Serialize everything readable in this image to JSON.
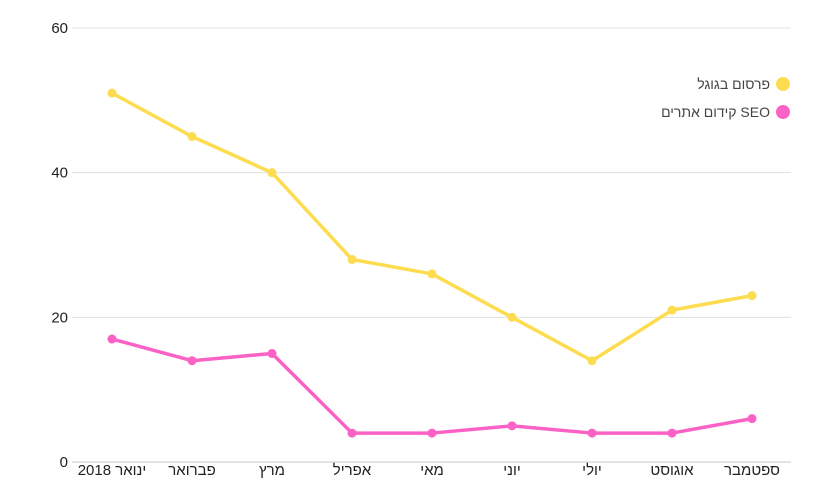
{
  "chart_data": {
    "type": "line",
    "title": "",
    "xlabel": "",
    "ylabel": "",
    "categories": [
      "ינואר 2018",
      "פברואר",
      "מרץ",
      "אפריל",
      "מאי",
      "יוני",
      "יולי",
      "אוגוסט",
      "ספטמבר"
    ],
    "y_ticks": [
      "0",
      "20",
      "40",
      "60"
    ],
    "ylim": [
      0,
      60
    ],
    "grid": true,
    "legend_position": "top-right",
    "series": [
      {
        "name": "פרסום בגוגל",
        "color": "#fddc4f",
        "values": [
          51,
          45,
          40,
          28,
          26,
          20,
          14,
          21,
          23
        ]
      },
      {
        "name": "קידום אתרים SEO",
        "color": "#fb62c5",
        "values": [
          17,
          14,
          15,
          4,
          4,
          5,
          4,
          4,
          6
        ]
      }
    ]
  }
}
